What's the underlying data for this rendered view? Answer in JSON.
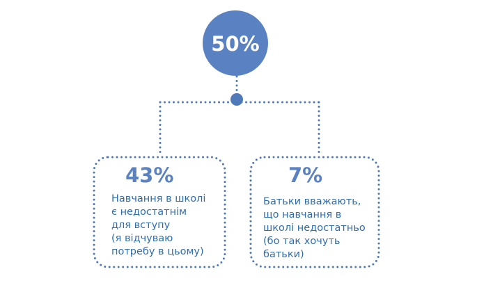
{
  "root": {
    "label": "50%"
  },
  "branches": [
    {
      "percent": "43%",
      "lines": [
        "Навчання в школі",
        "є недостатнім",
        "для вступу",
        "(я відчуваю",
        "потребу в цьому)"
      ]
    },
    {
      "percent": "7%",
      "lines": [
        "Батьки вважають,",
        "що навчання в",
        "школі недостатньо",
        "(бо так хочуть",
        "батьки)"
      ]
    }
  ]
}
